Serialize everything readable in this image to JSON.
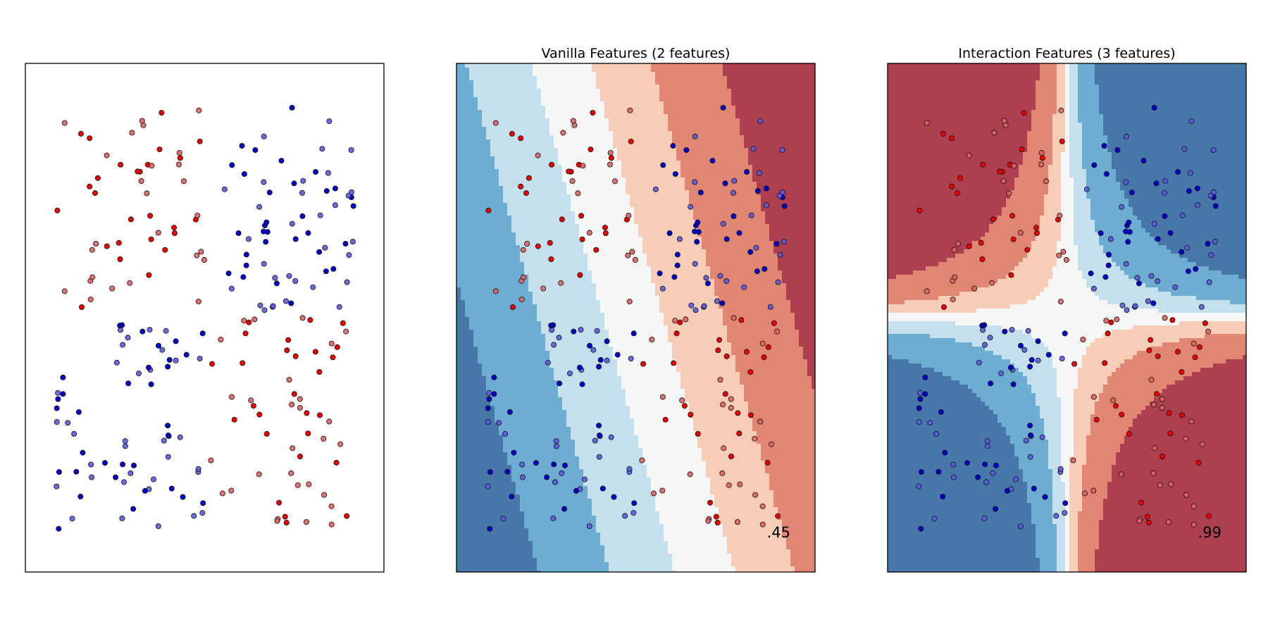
{
  "chart_data": [
    {
      "type": "scatter",
      "title": "",
      "xlabel": "",
      "ylabel": "",
      "xlim": [
        -1.2,
        1.2
      ],
      "ylim": [
        -1.2,
        1.2
      ],
      "axes_ticks": false,
      "point_colors": {
        "class_0_train": "#ff0000",
        "class_1_train": "#0000ff",
        "class_0_test": "#e06666",
        "class_1_test": "#6666e0"
      }
    },
    {
      "type": "scatter",
      "title": "Vanilla Features (2 features)",
      "score": ".45",
      "xlim": [
        -1.2,
        1.2
      ],
      "ylim": [
        -1.2,
        1.2
      ],
      "axes_ticks": false,
      "background": "decision-function contour (RdBu), diagonal bands"
    },
    {
      "type": "scatter",
      "title": "Interaction Features (3 features)",
      "score": ".99",
      "xlim": [
        -1.2,
        1.2
      ],
      "ylim": [
        -1.2,
        1.2
      ],
      "axes_ticks": false,
      "background": "decision-function contour (RdBu), hyperbolic quadrants"
    }
  ],
  "colors": {
    "rdbu": [
      "#4877aa",
      "#6eadd2",
      "#c4e0ec",
      "#f5f6f6",
      "#f8cdb8",
      "#e08673",
      "#ad3f51"
    ]
  }
}
